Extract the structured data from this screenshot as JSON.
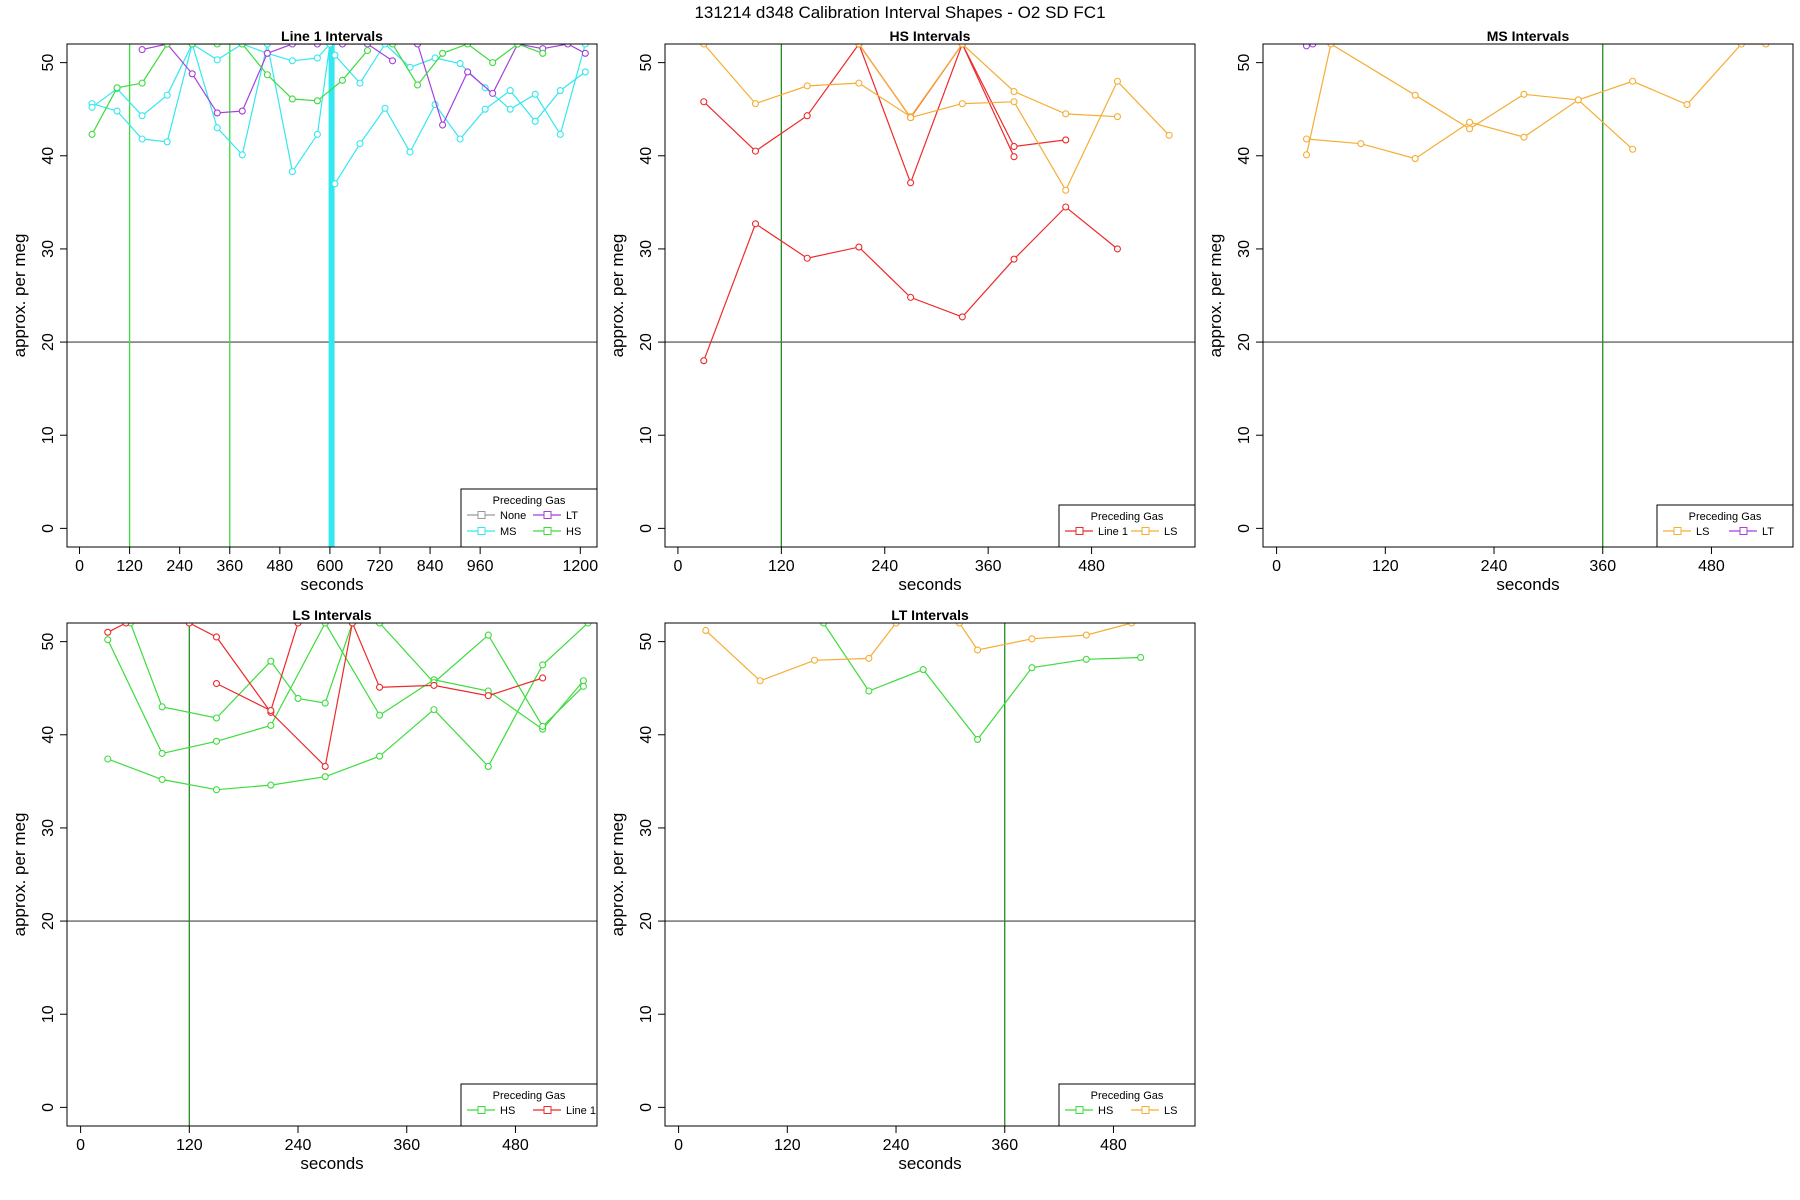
{
  "figure": {
    "title": "131214   d348   Calibration Interval Shapes - O2 SD FC1"
  },
  "colors": {
    "None": "#999999",
    "MS": "#33e8ef",
    "LT": "#a63ee0",
    "HS": "#3cdc3c",
    "Line 1": "#ee2a2a",
    "LS": "#f5ad33",
    "hline": "#444444",
    "vline": "#228b22"
  },
  "chart_data": [
    {
      "type": "line",
      "title": "Line 1 Intervals",
      "xlabel": "seconds",
      "ylabel": "approx. per meg",
      "xlim": [
        -30,
        1240
      ],
      "ylim": [
        -2,
        52
      ],
      "xticks": [
        0,
        120,
        240,
        360,
        480,
        600,
        720,
        840,
        960,
        1200
      ],
      "yticks": [
        0,
        10,
        20,
        30,
        40,
        50
      ],
      "hline": 20,
      "vlines": [
        {
          "x": 120,
          "color": "HS"
        },
        {
          "x": 360,
          "color": "HS"
        },
        {
          "x": 604,
          "color": "MS",
          "bold": true
        }
      ],
      "legend": {
        "title": "Preceding Gas",
        "position": "bottom-right",
        "columns": 2,
        "entries": [
          "None",
          "LT",
          "MS",
          "HS"
        ]
      },
      "series": [
        {
          "name": "MS",
          "x": [
            30,
            90,
            150,
            210,
            270,
            330,
            390,
            450,
            510,
            570,
            600
          ],
          "y": [
            45.6,
            44.8,
            41.8,
            41.5,
            52,
            43.0,
            40.1,
            52,
            38.3,
            42.3,
            52
          ]
        },
        {
          "name": "MS",
          "x": [
            30,
            90,
            150,
            210,
            270,
            330,
            390,
            450,
            510,
            570,
            600
          ],
          "y": [
            45.2,
            47.2,
            44.3,
            46.5,
            52,
            50.3,
            52,
            51,
            50.2,
            50.5,
            52
          ]
        },
        {
          "name": "MS",
          "x": [
            612,
            672,
            732,
            792,
            852,
            912,
            972,
            1032,
            1092,
            1152,
            1212
          ],
          "y": [
            37.0,
            41.3,
            45.1,
            40.4,
            45.5,
            41.8,
            45.0,
            47.0,
            43.7,
            47.0,
            49.0
          ]
        },
        {
          "name": "MS",
          "x": [
            612,
            672,
            732,
            792,
            852,
            912,
            972,
            1032,
            1092,
            1152,
            1212
          ],
          "y": [
            50.8,
            47.8,
            52,
            49.5,
            50.5,
            49.9,
            47.3,
            45.0,
            46.6,
            42.3,
            52
          ]
        },
        {
          "name": "LT",
          "x": [
            150,
            210,
            270,
            330,
            390,
            450,
            510,
            570,
            630,
            690,
            750
          ],
          "y": [
            51.4,
            52,
            48.8,
            44.6,
            44.8,
            51.0,
            52,
            52,
            52,
            52,
            50.2
          ]
        },
        {
          "name": "LT",
          "x": [
            810,
            870,
            930,
            990,
            1050,
            1110,
            1170,
            1212
          ],
          "y": [
            52,
            43.3,
            49.0,
            46.7,
            52,
            51.5,
            52,
            51.0
          ]
        },
        {
          "name": "HS",
          "x": [
            30,
            90,
            150,
            210,
            270,
            330,
            390,
            450,
            510,
            570,
            630,
            690
          ],
          "y": [
            42.3,
            47.3,
            47.8,
            52,
            52,
            52,
            52,
            48.7,
            46.1,
            45.9,
            48.1,
            51.3
          ]
        },
        {
          "name": "HS",
          "x": [
            750,
            810,
            870,
            930,
            990,
            1050,
            1110
          ],
          "y": [
            52,
            47.6,
            51.0,
            52,
            50.0,
            52,
            51.0
          ]
        }
      ]
    },
    {
      "type": "line",
      "title": "HS Intervals",
      "xlabel": "seconds",
      "ylabel": "approx. per meg",
      "xlim": [
        -15,
        600
      ],
      "ylim": [
        -2,
        52
      ],
      "xticks": [
        0,
        120,
        240,
        360,
        480
      ],
      "yticks": [
        0,
        10,
        20,
        30,
        40,
        50
      ],
      "hline": 20,
      "vlines": [
        {
          "x": 120,
          "color": "vline"
        }
      ],
      "legend": {
        "title": "Preceding Gas",
        "position": "bottom-right",
        "columns": 2,
        "entries": [
          "Line 1",
          "LS"
        ]
      },
      "series": [
        {
          "name": "Line 1",
          "x": [
            30,
            90,
            150,
            210,
            270,
            330,
            390,
            450,
            510
          ],
          "y": [
            18.0,
            32.7,
            29.0,
            30.2,
            24.8,
            22.7,
            28.9,
            34.5,
            30.0
          ]
        },
        {
          "name": "Line 1",
          "x": [
            30,
            90,
            150,
            210,
            270,
            330,
            390
          ],
          "y": [
            45.8,
            40.5,
            44.3,
            52,
            37.1,
            52,
            39.9
          ]
        },
        {
          "name": "Line 1",
          "x": [
            210,
            270,
            330,
            390,
            450
          ],
          "y": [
            52,
            44.1,
            52,
            41.0,
            41.7
          ]
        },
        {
          "name": "LS",
          "x": [
            30,
            90,
            150,
            210,
            270,
            330,
            390,
            450,
            510
          ],
          "y": [
            52,
            45.6,
            47.5,
            47.8,
            44.2,
            52,
            46.9,
            44.5,
            44.2
          ]
        },
        {
          "name": "LS",
          "x": [
            210,
            270,
            330,
            390,
            450,
            510,
            570
          ],
          "y": [
            52,
            44.1,
            45.6,
            45.8,
            36.3,
            48.0,
            42.2
          ]
        }
      ]
    },
    {
      "type": "line",
      "title": "MS Intervals",
      "xlabel": "seconds",
      "ylabel": "approx. per meg",
      "xlim": [
        -15,
        570
      ],
      "ylim": [
        -2,
        52
      ],
      "xticks": [
        0,
        120,
        240,
        360,
        480
      ],
      "yticks": [
        0,
        10,
        20,
        30,
        40,
        50
      ],
      "hline": 20,
      "vlines": [
        {
          "x": 360,
          "color": "vline"
        }
      ],
      "legend": {
        "title": "Preceding Gas",
        "position": "bottom-right",
        "columns": 2,
        "entries": [
          "LS",
          "LT"
        ]
      },
      "series": [
        {
          "name": "LS",
          "x": [
            33,
            93,
            153,
            213,
            273,
            333,
            393,
            453,
            513,
            540
          ],
          "y": [
            41.8,
            41.3,
            39.7,
            43.6,
            42.0,
            46.0,
            48.0,
            45.5,
            52,
            52
          ]
        },
        {
          "name": "LS",
          "x": [
            33,
            60,
            153,
            213,
            273,
            333,
            393
          ],
          "y": [
            40.1,
            52,
            46.5,
            42.9,
            46.6,
            46.0,
            40.7
          ]
        },
        {
          "name": "LT",
          "x": [
            33,
            40
          ],
          "y": [
            51.8,
            52
          ]
        }
      ]
    },
    {
      "type": "line",
      "title": "LS Intervals",
      "xlabel": "seconds",
      "ylabel": "approx. per meg",
      "xlim": [
        -15,
        570
      ],
      "ylim": [
        -2,
        52
      ],
      "xticks": [
        0,
        120,
        240,
        360,
        480
      ],
      "yticks": [
        0,
        10,
        20,
        30,
        40,
        50
      ],
      "hline": 20,
      "vlines": [
        {
          "x": 120,
          "color": "vline"
        }
      ],
      "legend": {
        "title": "Preceding Gas",
        "position": "bottom-right",
        "columns": 2,
        "entries": [
          "HS",
          "Line 1"
        ]
      },
      "series": [
        {
          "name": "HS",
          "x": [
            30,
            90,
            150,
            210,
            270,
            330,
            390,
            450,
            510,
            560
          ],
          "y": [
            37.4,
            35.2,
            34.1,
            34.6,
            35.5,
            37.7,
            42.7,
            36.6,
            47.5,
            52
          ]
        },
        {
          "name": "HS",
          "x": [
            30,
            90,
            150,
            210,
            270,
            330,
            390,
            450,
            510,
            555
          ],
          "y": [
            50.2,
            38.0,
            39.3,
            41.0,
            52,
            42.1,
            45.9,
            44.7,
            40.6,
            45.8
          ]
        },
        {
          "name": "HS",
          "x": [
            55,
            90,
            150,
            210,
            240,
            270,
            300,
            330,
            390,
            450,
            510,
            555
          ],
          "y": [
            52,
            43.0,
            41.8,
            47.9,
            43.9,
            43.4,
            52,
            52,
            45.6,
            50.7,
            40.9,
            45.2
          ]
        },
        {
          "name": "Line 1",
          "x": [
            30,
            50,
            120,
            150,
            210,
            270,
            300,
            330,
            390,
            450,
            510
          ],
          "y": [
            51.0,
            52,
            52,
            50.5,
            42.4,
            36.6,
            52,
            45.1,
            45.3,
            44.2,
            46.1
          ]
        },
        {
          "name": "Line 1",
          "x": [
            150,
            210,
            240
          ],
          "y": [
            45.5,
            42.6,
            52
          ]
        }
      ]
    },
    {
      "type": "line",
      "title": "LT Intervals",
      "xlabel": "seconds",
      "ylabel": "approx. per meg",
      "xlim": [
        -15,
        570
      ],
      "ylim": [
        -2,
        52
      ],
      "xticks": [
        0,
        120,
        240,
        360,
        480
      ],
      "yticks": [
        0,
        10,
        20,
        30,
        40,
        50
      ],
      "hline": 20,
      "vlines": [
        {
          "x": 360,
          "color": "vline"
        }
      ],
      "legend": {
        "title": "Preceding Gas",
        "position": "bottom-right",
        "columns": 2,
        "entries": [
          "HS",
          "LS"
        ]
      },
      "series": [
        {
          "name": "HS",
          "x": [
            160,
            210,
            270,
            330,
            390,
            450,
            510
          ],
          "y": [
            52,
            44.7,
            47.0,
            39.5,
            47.2,
            48.1,
            48.3
          ]
        },
        {
          "name": "LS",
          "x": [
            30,
            90,
            150,
            210,
            240
          ],
          "y": [
            51.2,
            45.8,
            48.0,
            48.2,
            52
          ]
        },
        {
          "name": "LS",
          "x": [
            310,
            330,
            390,
            450,
            500
          ],
          "y": [
            52,
            49.1,
            50.3,
            50.7,
            52
          ]
        }
      ]
    }
  ]
}
